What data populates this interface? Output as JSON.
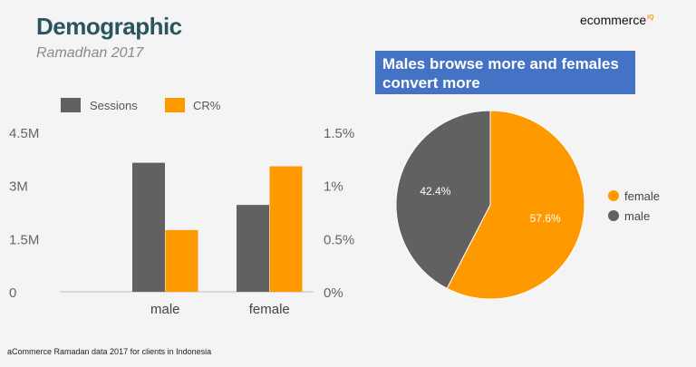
{
  "header": {
    "title": "Demographic",
    "subtitle": "Ramadhan 2017",
    "brand": "ecommerce",
    "brand_sup": "IQ"
  },
  "callout": "Males browse more and females convert more",
  "footnote": "aCommerce Ramadan data 2017 for clients in Indonesia",
  "colors": {
    "sessions": "#616161",
    "cr": "#ff9900",
    "female": "#ff9900",
    "male": "#616161",
    "callout_bg": "#4472c4"
  },
  "chart_data": [
    {
      "type": "bar",
      "title": "",
      "categories": [
        "male",
        "female"
      ],
      "series": [
        {
          "name": "Sessions",
          "axis": "left",
          "values": [
            3640000,
            2450000
          ]
        },
        {
          "name": "CR%",
          "axis": "right",
          "values": [
            0.58,
            1.18
          ]
        }
      ],
      "left_ticks": [
        "0",
        "1.5M",
        "3M",
        "4.5M"
      ],
      "right_ticks": [
        "0%",
        "0.5%",
        "1%",
        "1.5%"
      ],
      "ylim_left": [
        0,
        4500000
      ],
      "ylim_right": [
        0,
        1.5
      ],
      "legend": "top-left"
    },
    {
      "type": "pie",
      "title": "",
      "slices": [
        {
          "label": "female",
          "value": 57.6,
          "display": "57.6%"
        },
        {
          "label": "male",
          "value": 42.4,
          "display": "42.4%"
        }
      ],
      "legend": "right"
    }
  ]
}
